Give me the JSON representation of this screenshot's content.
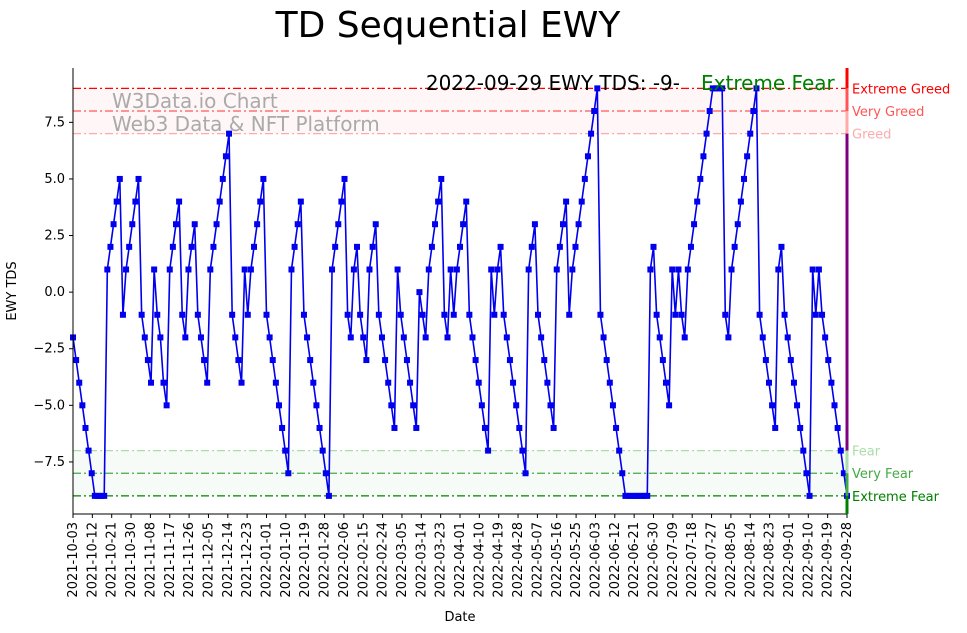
{
  "chart_data": {
    "type": "line",
    "title": "TD Sequential EWY",
    "xlabel": "Date",
    "ylabel": "EWY TDS",
    "ylim": [
      -9.8,
      9.9
    ],
    "series": [
      {
        "name": "EWY TDS",
        "color": "#0000ee",
        "values": [
          -2,
          -3,
          -4,
          -5,
          -6,
          -7,
          -8,
          -9,
          -9,
          -9,
          -9,
          1,
          2,
          3,
          4,
          5,
          -1,
          1,
          2,
          3,
          4,
          5,
          -1,
          -2,
          -3,
          -4,
          1,
          -1,
          -2,
          -4,
          -5,
          1,
          2,
          3,
          4,
          -1,
          -2,
          1,
          2,
          3,
          -1,
          -2,
          -3,
          -4,
          1,
          2,
          3,
          4,
          5,
          6,
          7,
          -1,
          -2,
          -3,
          -4,
          1,
          -1,
          1,
          2,
          3,
          4,
          5,
          -1,
          -2,
          -3,
          -4,
          -5,
          -6,
          -7,
          -8,
          1,
          2,
          3,
          4,
          -1,
          -2,
          -3,
          -4,
          -5,
          -6,
          -7,
          -8,
          -9,
          1,
          2,
          3,
          4,
          5,
          -1,
          -2,
          1,
          2,
          -1,
          -2,
          -3,
          1,
          2,
          3,
          -1,
          -2,
          -3,
          -4,
          -5,
          -6,
          1,
          -1,
          -2,
          -3,
          -4,
          -5,
          -6,
          0,
          -1,
          -2,
          1,
          2,
          3,
          4,
          5,
          -1,
          -2,
          1,
          -1,
          1,
          2,
          3,
          4,
          -1,
          -2,
          -3,
          -4,
          -5,
          -6,
          -7,
          1,
          -1,
          1,
          2,
          -1,
          -2,
          -3,
          -4,
          -5,
          -6,
          -7,
          -8,
          1,
          2,
          3,
          -1,
          -2,
          -3,
          -4,
          -5,
          -6,
          1,
          2,
          3,
          4,
          -1,
          1,
          2,
          3,
          4,
          5,
          6,
          7,
          8,
          9,
          -1,
          -2,
          -3,
          -4,
          -5,
          -6,
          -7,
          -8,
          -9,
          -9,
          -9,
          -9,
          -9,
          -9,
          -9,
          -9,
          1,
          2,
          -1,
          -2,
          -3,
          -4,
          -5,
          1,
          -1,
          1,
          -1,
          -2,
          1,
          2,
          3,
          4,
          5,
          6,
          7,
          8,
          9,
          9,
          9,
          9,
          -1,
          -2,
          1,
          2,
          3,
          4,
          5,
          6,
          7,
          8,
          9,
          -1,
          -2,
          -3,
          -4,
          -5,
          -6,
          1,
          2,
          -1,
          -2,
          -3,
          -4,
          -5,
          -6,
          -7,
          -8,
          -9,
          1,
          -1,
          1,
          -1,
          -2,
          -3,
          -4,
          -5,
          -6,
          -7,
          -8,
          -9
        ]
      }
    ],
    "x_tick_labels": [
      "2021-10-03",
      "2021-10-12",
      "2021-10-21",
      "2021-10-30",
      "2021-11-08",
      "2021-11-17",
      "2021-11-26",
      "2021-12-05",
      "2021-12-14",
      "2021-12-23",
      "2022-01-01",
      "2022-01-10",
      "2022-01-19",
      "2022-01-28",
      "2022-02-06",
      "2022-02-15",
      "2022-02-24",
      "2022-03-05",
      "2022-03-14",
      "2022-03-23",
      "2022-04-01",
      "2022-04-10",
      "2022-04-19",
      "2022-04-28",
      "2022-05-07",
      "2022-05-16",
      "2022-05-25",
      "2022-06-03",
      "2022-06-12",
      "2022-06-21",
      "2022-06-30",
      "2022-07-09",
      "2022-07-18",
      "2022-07-27",
      "2022-08-05",
      "2022-08-14",
      "2022-08-23",
      "2022-09-01",
      "2022-09-10",
      "2022-09-19",
      "2022-09-28"
    ],
    "y_ticks": [
      -7.5,
      -5.0,
      -2.5,
      0.0,
      2.5,
      5.0,
      7.5
    ],
    "y_tick_labels": [
      "−7.5",
      "−5.0",
      "−2.5",
      "0.0",
      "2.5",
      "5.0",
      "7.5"
    ],
    "reference_lines": [
      {
        "value": 9,
        "label": "Extreme Greed",
        "color": "#ff0000"
      },
      {
        "value": 8,
        "label": "Very Greed",
        "color": "#ff5555"
      },
      {
        "value": 7,
        "label": "Greed",
        "color": "#ffaaaa"
      },
      {
        "value": -7,
        "label": "Fear",
        "color": "#aaddaa"
      },
      {
        "value": -8,
        "label": "Very Fear",
        "color": "#44aa44"
      },
      {
        "value": -9,
        "label": "Extreme Fear",
        "color": "#008000"
      }
    ],
    "annotations": {
      "status_text": "2022-09-29 EWY TDS: -9-",
      "status_label": "Extreme Fear",
      "status_color": "#008000",
      "watermark_line1": "W3Data.io Chart",
      "watermark_line2": "Web3 Data & NFT Platform"
    }
  }
}
